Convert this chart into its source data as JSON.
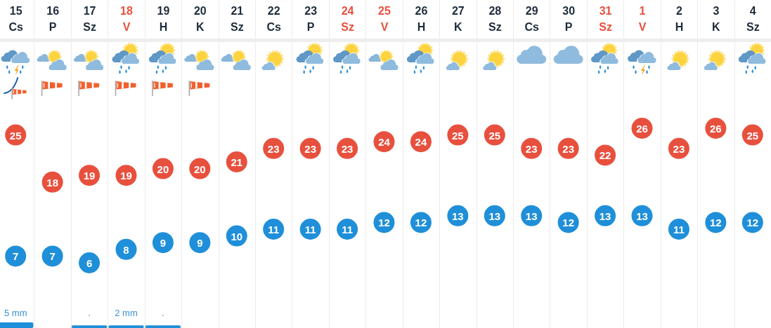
{
  "chart_data": {
    "type": "scatter",
    "categories": [
      "15 Cs",
      "16 P",
      "17 Sz",
      "18 V",
      "19 H",
      "20 K",
      "21 Sz",
      "22 Cs",
      "23 P",
      "24 Sz",
      "25 V",
      "26 H",
      "27 K",
      "28 Sz",
      "29 Cs",
      "30 P",
      "31 Sz",
      "1 V",
      "2 H",
      "3 K",
      "4 Sz"
    ],
    "series": [
      {
        "color": "#e8503e",
        "values": [
          25,
          18,
          19,
          19,
          20,
          20,
          21,
          23,
          23,
          23,
          24,
          24,
          25,
          25,
          23,
          23,
          22,
          26,
          23,
          26,
          25
        ]
      },
      {
        "color": "#1f8fd9",
        "values": [
          7,
          7,
          6,
          8,
          9,
          9,
          10,
          11,
          11,
          11,
          12,
          12,
          13,
          13,
          13,
          12,
          13,
          13,
          11,
          12,
          12
        ]
      }
    ],
    "marker": "circle",
    "data_labels": true,
    "grid": "x",
    "tick_labels": "x",
    "annotations": [
      "5 mm",
      ".",
      "2 mm",
      "."
    ]
  }
}
